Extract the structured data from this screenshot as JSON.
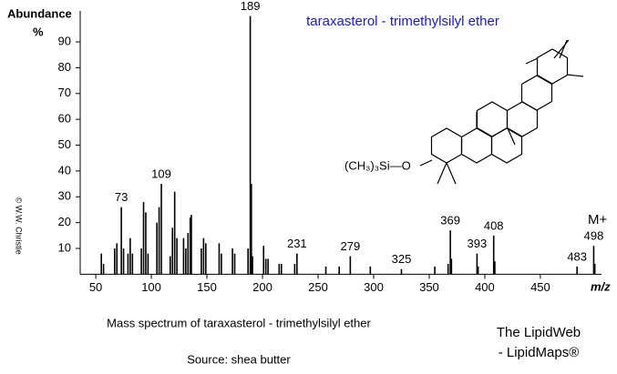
{
  "chart_data": {
    "type": "stem",
    "title": "taraxasterol - trimethylsilyl ether",
    "title_color": "#1a1acc",
    "y_label": "Abundance",
    "y_unit": "%",
    "x_label": "m/z",
    "annotation": "M+",
    "structure_label": "(CH₃)₃Si—O",
    "caption": "Mass spectrum of taraxasterol - trimethylsilyl ether",
    "source": "Source: shea butter",
    "credit": "© W.W. Christie",
    "brand": "The LipidWeb",
    "brand2": "- LipidMaps®",
    "color": "#000000",
    "xlim": [
      36,
      505
    ],
    "ylim": [
      0,
      100
    ],
    "xticks": [
      50,
      100,
      150,
      200,
      250,
      300,
      350,
      400,
      450
    ],
    "yticks": [
      10,
      20,
      30,
      40,
      50,
      60,
      70,
      80,
      90
    ],
    "labeled_peaks": {
      "x": [
        73,
        109,
        189,
        231,
        279,
        325,
        369,
        393,
        408,
        483,
        498
      ],
      "values": [
        26,
        35,
        100,
        8,
        7,
        2,
        17,
        8,
        15,
        3,
        11
      ]
    },
    "other_peaks": {
      "x": [
        55,
        57,
        67,
        69,
        75,
        79,
        81,
        83,
        91,
        93,
        95,
        97,
        105,
        107,
        117,
        119,
        121,
        123,
        129,
        131,
        133,
        135,
        136,
        145,
        147,
        149,
        161,
        163,
        173,
        175,
        187,
        190,
        191,
        201,
        203,
        205,
        215,
        217,
        229,
        257,
        269,
        297,
        355,
        367,
        370,
        394,
        409,
        499
      ],
      "values": [
        8,
        4,
        10,
        12,
        10,
        8,
        14,
        8,
        10,
        28,
        24,
        8,
        20,
        26,
        7,
        18,
        32,
        14,
        14,
        10,
        16,
        22,
        23,
        10,
        14,
        12,
        12,
        8,
        10,
        8,
        10,
        35,
        7,
        11,
        6,
        6,
        4,
        4,
        4,
        3,
        3,
        3,
        3,
        4,
        6,
        3,
        5,
        4
      ]
    }
  }
}
